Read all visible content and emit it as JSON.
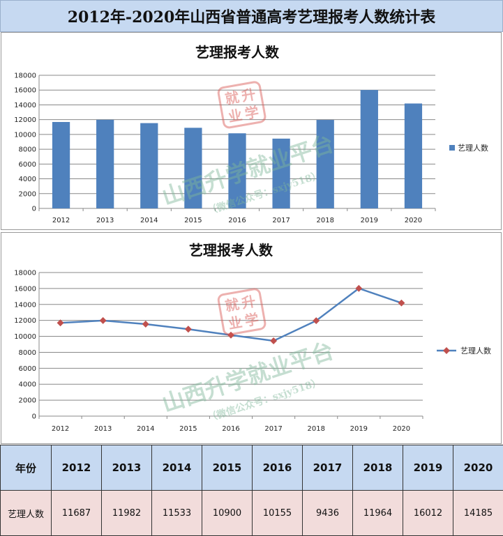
{
  "page_title": "2012年-2020年山西省普通高考艺理报考人数统计表",
  "watermark": {
    "seal_text": "就升业学",
    "brand": "山西升学就业平台",
    "wechat": "（微信公众号：sxjy518）"
  },
  "colors": {
    "bar": "#4f81bd",
    "line": "#4f81bd",
    "marker": "#c0504d",
    "header_bg": "#c6d9f1",
    "value_bg": "#f2dcdb"
  },
  "chart_data": [
    {
      "type": "bar",
      "title": "艺理报考人数",
      "categories": [
        "2012",
        "2013",
        "2014",
        "2015",
        "2016",
        "2017",
        "2018",
        "2019",
        "2020"
      ],
      "series": [
        {
          "name": "艺理人数",
          "values": [
            11687,
            11982,
            11533,
            10900,
            10155,
            9436,
            11964,
            16012,
            14185
          ]
        }
      ],
      "ylim": [
        0,
        18000
      ],
      "yticks": [
        "0",
        "2000",
        "4000",
        "6000",
        "8000",
        "10000",
        "12000",
        "14000",
        "16000",
        "18000"
      ],
      "grid": true,
      "legend": "right"
    },
    {
      "type": "line",
      "title": "艺理报考人数",
      "categories": [
        "2012",
        "2013",
        "2014",
        "2015",
        "2016",
        "2017",
        "2018",
        "2019",
        "2020"
      ],
      "series": [
        {
          "name": "艺理人数",
          "values": [
            11687,
            11982,
            11533,
            10900,
            10155,
            9436,
            11964,
            16012,
            14185
          ]
        }
      ],
      "ylim": [
        0,
        18000
      ],
      "yticks": [
        "0",
        "2000",
        "4000",
        "6000",
        "8000",
        "10000",
        "12000",
        "14000",
        "16000",
        "18000"
      ],
      "grid": true,
      "legend": "right"
    }
  ],
  "table": {
    "header_label": "年份",
    "years": [
      "2012",
      "2013",
      "2014",
      "2015",
      "2016",
      "2017",
      "2018",
      "2019",
      "2020"
    ],
    "row_label": "艺理人数",
    "values": [
      "11687",
      "11982",
      "11533",
      "10900",
      "10155",
      "9436",
      "11964",
      "16012",
      "14185"
    ]
  }
}
